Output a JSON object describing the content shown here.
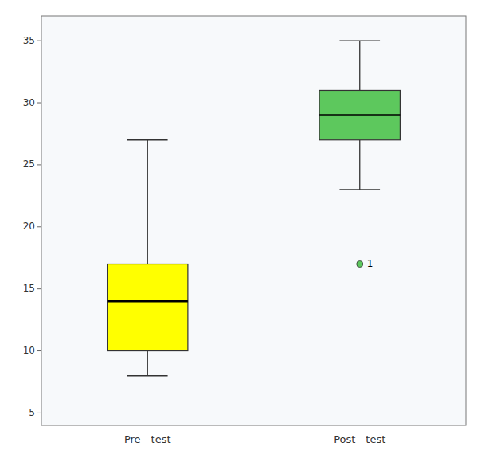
{
  "chart_data": {
    "type": "box",
    "categories": [
      "Pre - test",
      "Post - test"
    ],
    "boxes": [
      {
        "whislo": 8,
        "q1": 10,
        "med": 14,
        "q3": 17,
        "whishi": 27,
        "color": "#FFFF00"
      },
      {
        "whislo": 23,
        "q1": 27,
        "med": 29,
        "q3": 31,
        "whishi": 35,
        "color": "#5DC85D",
        "fliers": [
          17
        ],
        "flier_labels": [
          "1"
        ]
      }
    ],
    "ylim": [
      4,
      37
    ],
    "yticks": [
      5,
      10,
      15,
      20,
      25,
      30,
      35
    ],
    "grid": false
  }
}
